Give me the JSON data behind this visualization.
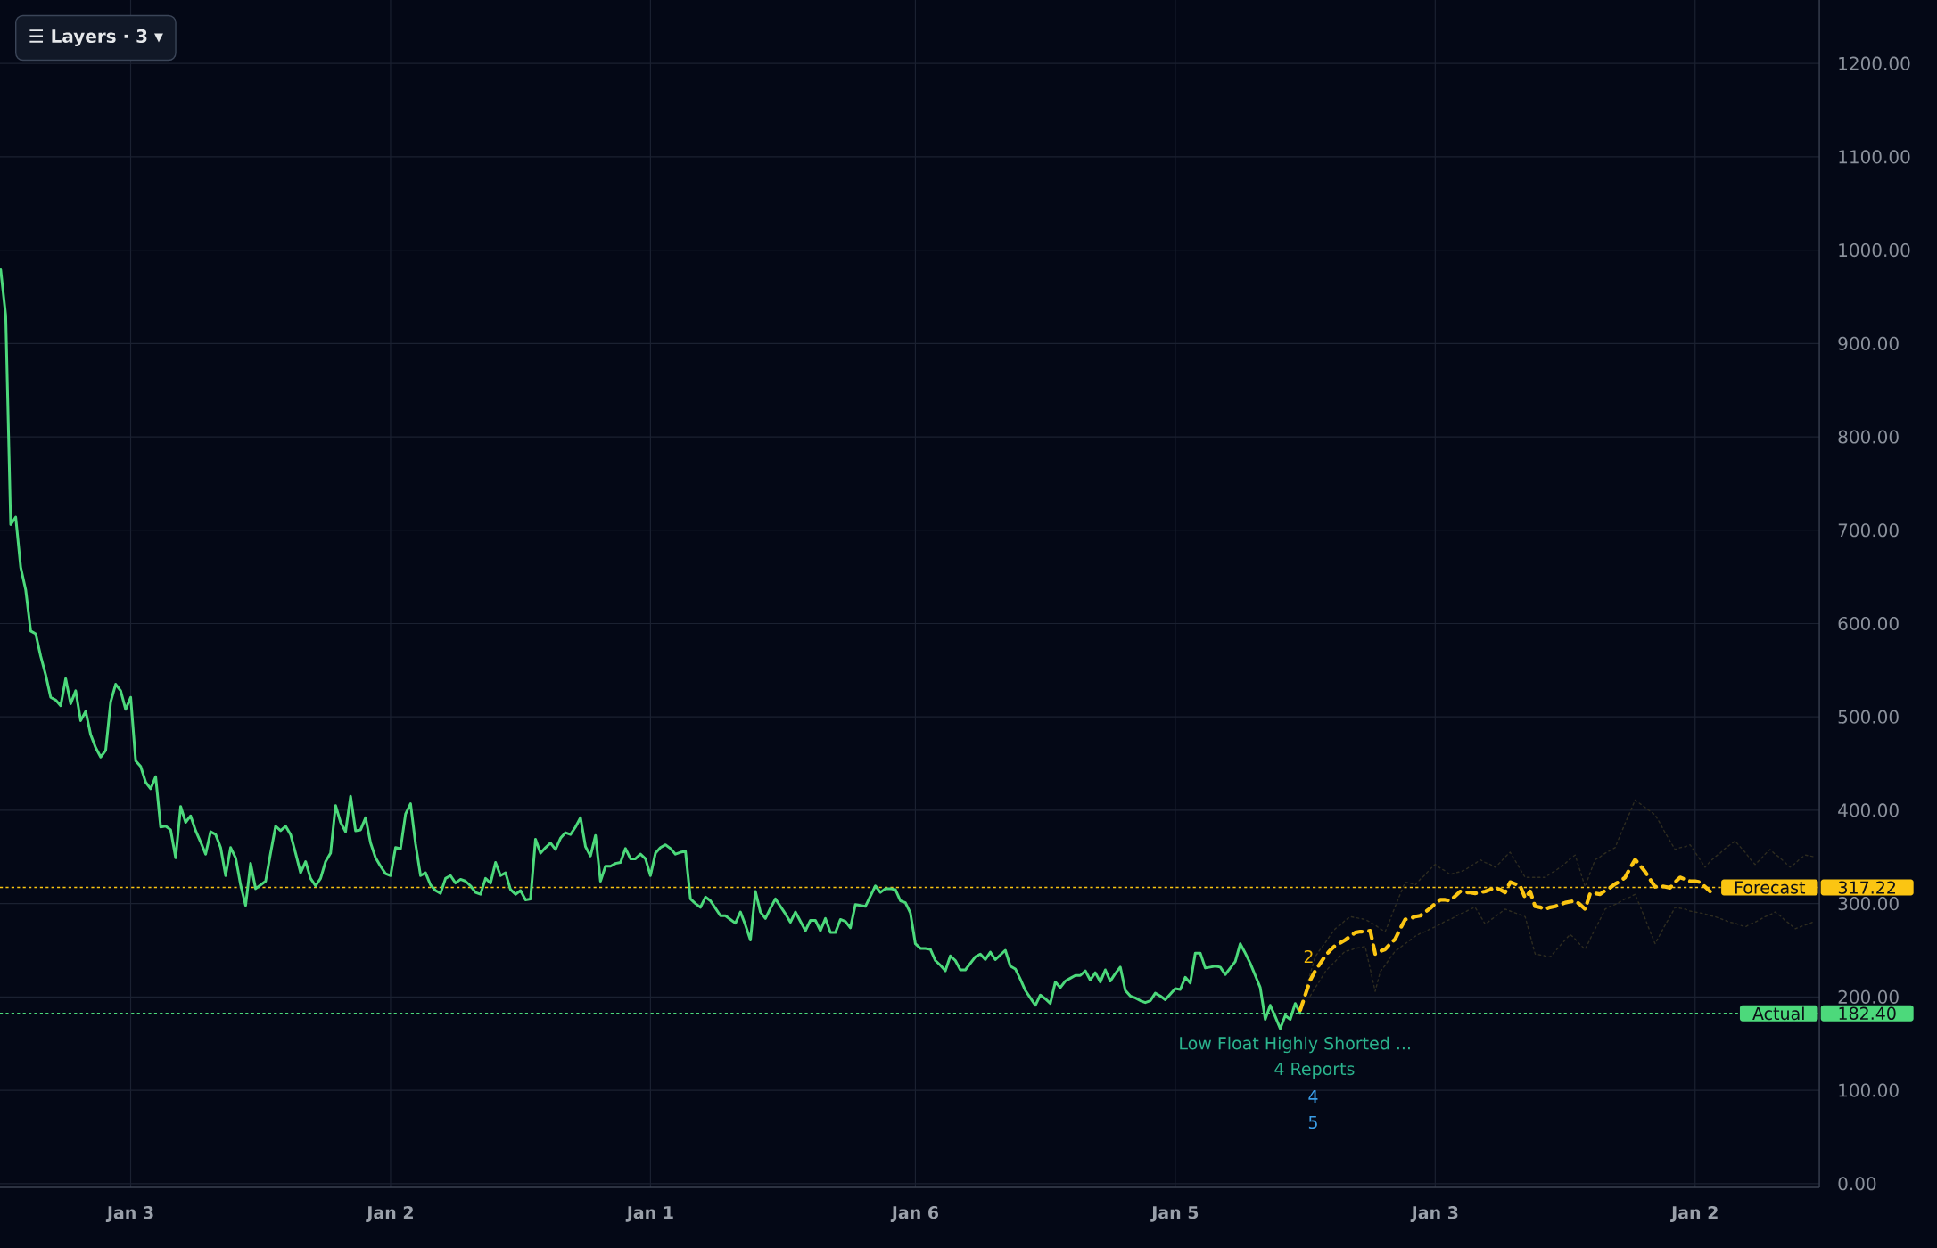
{
  "chart_data": {
    "type": "line",
    "categories": [
      null,
      null,
      null,
      null,
      null,
      null,
      null,
      null,
      null,
      null,
      null,
      null,
      null,
      null,
      null,
      null,
      null,
      null,
      null,
      null,
      null,
      null,
      null,
      null,
      null,
      null,
      "Jan 3",
      null,
      null,
      null,
      null,
      null,
      null,
      null,
      null,
      null,
      null,
      null,
      null,
      null,
      null,
      null,
      null,
      null,
      null,
      null,
      null,
      null,
      null,
      null,
      null,
      null,
      null,
      null,
      null,
      null,
      null,
      null,
      null,
      null,
      null,
      null,
      null,
      null,
      null,
      null,
      null,
      null,
      null,
      null,
      null,
      null,
      null,
      null,
      null,
      null,
      null,
      null,
      "Jan 2",
      null,
      null,
      null,
      null,
      null,
      null,
      null,
      null,
      null,
      null,
      null,
      null,
      null,
      null,
      null,
      null,
      null,
      null,
      null,
      null,
      null,
      null,
      null,
      null,
      null,
      null,
      null,
      null,
      null,
      null,
      null,
      null,
      null,
      null,
      null,
      null,
      null,
      null,
      null,
      null,
      null,
      null,
      null,
      null,
      null,
      null,
      null,
      null,
      null,
      null,
      null,
      "Jan 1",
      null,
      null,
      null,
      null,
      null,
      null,
      null,
      null,
      null,
      null,
      null,
      null,
      null,
      null,
      null,
      null,
      null,
      null,
      null,
      null,
      null,
      null,
      null,
      null,
      null,
      null,
      null,
      null,
      null,
      null,
      null,
      null,
      null,
      null,
      null,
      null,
      null,
      null,
      null,
      null,
      null,
      null,
      null,
      null,
      null,
      null,
      null,
      null,
      null,
      null,
      null,
      null,
      "Jan 6",
      null,
      null,
      null,
      null,
      null,
      null,
      null,
      null,
      null,
      null,
      null,
      null,
      null,
      null,
      null,
      null,
      null,
      null,
      null,
      null,
      null,
      null,
      null,
      null,
      null,
      null,
      null,
      null,
      null,
      null,
      null,
      null,
      null,
      null,
      null,
      null,
      null,
      null,
      null,
      null,
      null,
      null,
      null,
      null,
      null,
      null,
      null,
      null,
      null,
      null,
      null,
      "Jan 5",
      null,
      null,
      null,
      null,
      null,
      null,
      null,
      null,
      null,
      null,
      null,
      null,
      null,
      null,
      null,
      null,
      null,
      null,
      null,
      null,
      null,
      null,
      null,
      null,
      null,
      null,
      null,
      null,
      null,
      null,
      null,
      null,
      null,
      null,
      null,
      null,
      null,
      null,
      null,
      null,
      null,
      null,
      null,
      null,
      null,
      null,
      null,
      null,
      null,
      null,
      null,
      "Jan 3",
      null,
      null,
      null,
      null,
      null,
      null,
      null,
      null,
      null,
      null,
      null,
      null,
      null,
      null,
      null,
      null,
      null,
      null,
      null,
      null,
      null,
      null,
      null,
      null,
      null,
      null,
      null,
      null,
      null,
      null,
      null,
      null,
      null,
      null,
      null,
      null,
      null,
      null,
      null,
      null,
      null,
      null,
      null,
      null,
      null,
      null,
      null,
      null,
      null,
      null,
      null,
      "Jan 2",
      null,
      null,
      null,
      null,
      null,
      null,
      null,
      null,
      null,
      null,
      null,
      null,
      null,
      null,
      null,
      null,
      null,
      null,
      null,
      null,
      null,
      null,
      null,
      null
    ],
    "ylim": [
      -4,
      1268
    ],
    "yticks": [
      {
        "value": 0,
        "label": "0.00"
      },
      {
        "value": 100,
        "label": "100.00"
      },
      {
        "value": 200,
        "label": "200.00"
      },
      {
        "value": 300,
        "label": "300.00"
      },
      {
        "value": 400,
        "label": "400.00"
      },
      {
        "value": 500,
        "label": "500.00"
      },
      {
        "value": 600,
        "label": "600.00"
      },
      {
        "value": 700,
        "label": "700.00"
      },
      {
        "value": 800,
        "label": "800.00"
      },
      {
        "value": 900,
        "label": "900.00"
      },
      {
        "value": 1000,
        "label": "1000.00"
      },
      {
        "value": 1100,
        "label": "1100.00"
      },
      {
        "value": 1200,
        "label": "1200.00"
      }
    ],
    "grid": true,
    "series": [
      {
        "color": "#2e2c20",
        "line_style": "dotted",
        "values": [
          null,
          null,
          null,
          null,
          null,
          null,
          null,
          null,
          null,
          null,
          null,
          null,
          null,
          null,
          null,
          null,
          null,
          null,
          null,
          null,
          null,
          null,
          null,
          null,
          null,
          null,
          null,
          null,
          null,
          null,
          null,
          null,
          null,
          null,
          null,
          null,
          null,
          null,
          null,
          null,
          null,
          null,
          null,
          null,
          null,
          null,
          null,
          null,
          null,
          null,
          null,
          null,
          null,
          null,
          null,
          null,
          null,
          null,
          null,
          null,
          null,
          null,
          null,
          null,
          null,
          null,
          null,
          null,
          null,
          null,
          null,
          null,
          null,
          null,
          null,
          null,
          null,
          null,
          null,
          null,
          null,
          null,
          null,
          null,
          null,
          null,
          null,
          null,
          null,
          null,
          null,
          null,
          null,
          null,
          null,
          null,
          null,
          null,
          null,
          null,
          null,
          null,
          null,
          null,
          null,
          null,
          null,
          null,
          null,
          null,
          null,
          null,
          null,
          null,
          null,
          null,
          null,
          null,
          null,
          null,
          null,
          null,
          null,
          null,
          null,
          null,
          null,
          null,
          null,
          null,
          null,
          null,
          null,
          null,
          null,
          null,
          null,
          null,
          null,
          null,
          null,
          null,
          null,
          null,
          null,
          null,
          null,
          null,
          null,
          null,
          null,
          null,
          null,
          null,
          null,
          null,
          null,
          null,
          null,
          null,
          null,
          null,
          null,
          null,
          null,
          null,
          null,
          null,
          null,
          null,
          null,
          null,
          null,
          null,
          null,
          null,
          null,
          null,
          null,
          null,
          null,
          null,
          null,
          null,
          null,
          null,
          null,
          null,
          null,
          null,
          null,
          null,
          null,
          null,
          null,
          null,
          null,
          null,
          null,
          null,
          null,
          null,
          null,
          null,
          null,
          null,
          null,
          null,
          null,
          null,
          null,
          null,
          null,
          null,
          null,
          null,
          null,
          null,
          null,
          null,
          null,
          null,
          null,
          null,
          null,
          null,
          null,
          null,
          null,
          null,
          null,
          null,
          null,
          null,
          null,
          null,
          null,
          null,
          null,
          null,
          null,
          null,
          null,
          null,
          null,
          null,
          null,
          null,
          null,
          null,
          null,
          null,
          null,
          null,
          null,
          null,
          null,
          null,
          null,
          null,
          null,
          206,
          225,
          243,
          251,
          258,
          266,
          273,
          277,
          282,
          286,
          285,
          284,
          283,
          280,
          277,
          273,
          270,
          283,
          297,
          310,
          323,
          322,
          320,
          326,
          331,
          337,
          342,
          338,
          335,
          331,
          333,
          334,
          336,
          340,
          343,
          347,
          344,
          342,
          339,
          344,
          350,
          355,
          346,
          337,
          328,
          328,
          328,
          328,
          328,
          332,
          335,
          339,
          343,
          348,
          352,
          335,
          318,
          333,
          347,
          350,
          354,
          357,
          360,
          373,
          386,
          398,
          411,
          407,
          403,
          399,
          395,
          386,
          376,
          367,
          358,
          360,
          361,
          363,
          355,
          347,
          339,
          345,
          350,
          354,
          359,
          363,
          367,
          361,
          355,
          348,
          342,
          347,
          353,
          358,
          353,
          349,
          344,
          339,
          343,
          348,
          352,
          351,
          350
        ]
      },
      {
        "color": "#2e2c20",
        "line_style": "dotted",
        "values": [
          null,
          null,
          null,
          null,
          null,
          null,
          null,
          null,
          null,
          null,
          null,
          null,
          null,
          null,
          null,
          null,
          null,
          null,
          null,
          null,
          null,
          null,
          null,
          null,
          null,
          null,
          null,
          null,
          null,
          null,
          null,
          null,
          null,
          null,
          null,
          null,
          null,
          null,
          null,
          null,
          null,
          null,
          null,
          null,
          null,
          null,
          null,
          null,
          null,
          null,
          null,
          null,
          null,
          null,
          null,
          null,
          null,
          null,
          null,
          null,
          null,
          null,
          null,
          null,
          null,
          null,
          null,
          null,
          null,
          null,
          null,
          null,
          null,
          null,
          null,
          null,
          null,
          null,
          null,
          null,
          null,
          null,
          null,
          null,
          null,
          null,
          null,
          null,
          null,
          null,
          null,
          null,
          null,
          null,
          null,
          null,
          null,
          null,
          null,
          null,
          null,
          null,
          null,
          null,
          null,
          null,
          null,
          null,
          null,
          null,
          null,
          null,
          null,
          null,
          null,
          null,
          null,
          null,
          null,
          null,
          null,
          null,
          null,
          null,
          null,
          null,
          null,
          null,
          null,
          null,
          null,
          null,
          null,
          null,
          null,
          null,
          null,
          null,
          null,
          null,
          null,
          null,
          null,
          null,
          null,
          null,
          null,
          null,
          null,
          null,
          null,
          null,
          null,
          null,
          null,
          null,
          null,
          null,
          null,
          null,
          null,
          null,
          null,
          null,
          null,
          null,
          null,
          null,
          null,
          null,
          null,
          null,
          null,
          null,
          null,
          null,
          null,
          null,
          null,
          null,
          null,
          null,
          null,
          null,
          null,
          null,
          null,
          null,
          null,
          null,
          null,
          null,
          null,
          null,
          null,
          null,
          null,
          null,
          null,
          null,
          null,
          null,
          null,
          null,
          null,
          null,
          null,
          null,
          null,
          null,
          null,
          null,
          null,
          null,
          null,
          null,
          null,
          null,
          null,
          null,
          null,
          null,
          null,
          null,
          null,
          null,
          null,
          null,
          null,
          null,
          null,
          null,
          null,
          null,
          null,
          null,
          null,
          null,
          null,
          null,
          null,
          null,
          null,
          null,
          null,
          null,
          null,
          null,
          null,
          null,
          null,
          null,
          null,
          null,
          null,
          null,
          null,
          null,
          null,
          null,
          null,
          null,
          201,
          210,
          218,
          227,
          233,
          238,
          244,
          249,
          250,
          252,
          253,
          254,
          230,
          206,
          227,
          234,
          242,
          249,
          253,
          257,
          261,
          265,
          268,
          270,
          273,
          275,
          278,
          281,
          283,
          286,
          289,
          291,
          294,
          296,
          287,
          278,
          282,
          286,
          290,
          294,
          292,
          290,
          288,
          286,
          266,
          246,
          245,
          244,
          243,
          249,
          255,
          261,
          267,
          262,
          256,
          251,
          262,
          273,
          283,
          294,
          297,
          299,
          302,
          305,
          307,
          310,
          297,
          284,
          270,
          257,
          267,
          277,
          286,
          296,
          295,
          294,
          292,
          291,
          290,
          289,
          287,
          286,
          284,
          282,
          280,
          279,
          277,
          275,
          278,
          280,
          283,
          286,
          288,
          291,
          287,
          282,
          278,
          273,
          275,
          277,
          279,
          281
        ]
      },
      {
        "name": "Actual",
        "color": "#4cd97b",
        "line_style": "solid",
        "values": [
          979,
          930,
          706,
          714,
          660,
          636,
          592,
          589,
          565,
          545,
          521,
          518,
          512,
          541,
          514,
          528,
          496,
          506,
          481,
          467,
          457,
          464,
          516,
          535,
          528,
          508,
          521,
          453,
          447,
          430,
          423,
          436,
          382,
          383,
          379,
          349,
          404,
          387,
          394,
          378,
          366,
          353,
          377,
          374,
          360,
          330,
          360,
          349,
          320,
          298,
          343,
          316,
          320,
          324,
          354,
          383,
          378,
          383,
          374,
          354,
          333,
          345,
          327,
          319,
          327,
          345,
          354,
          405,
          387,
          377,
          415,
          378,
          379,
          392,
          365,
          349,
          340,
          332,
          330,
          360,
          359,
          396,
          407,
          364,
          330,
          333,
          320,
          314,
          311,
          327,
          330,
          322,
          326,
          324,
          319,
          312,
          310,
          327,
          322,
          344,
          330,
          333,
          315,
          310,
          314,
          304,
          305,
          369,
          354,
          360,
          365,
          358,
          370,
          376,
          374,
          382,
          392,
          361,
          351,
          373,
          324,
          340,
          340,
          343,
          344,
          359,
          348,
          348,
          353,
          348,
          330,
          354,
          360,
          363,
          359,
          353,
          355,
          356,
          305,
          300,
          296,
          307,
          303,
          295,
          287,
          287,
          283,
          279,
          291,
          277,
          261,
          313,
          291,
          284,
          295,
          305,
          297,
          289,
          280,
          291,
          281,
          271,
          282,
          282,
          271,
          284,
          269,
          269,
          283,
          281,
          274,
          299,
          298,
          297,
          308,
          319,
          312,
          316,
          316,
          315,
          303,
          301,
          290,
          257,
          252,
          252,
          251,
          239,
          234,
          228,
          244,
          239,
          229,
          229,
          236,
          243,
          246,
          240,
          248,
          240,
          245,
          250,
          233,
          230,
          219,
          207,
          199,
          191,
          202,
          198,
          193,
          216,
          210,
          217,
          220,
          223,
          223,
          228,
          218,
          226,
          216,
          229,
          217,
          225,
          232,
          207,
          201,
          199,
          196,
          194,
          196,
          204,
          201,
          197,
          203,
          209,
          208,
          221,
          215,
          247,
          247,
          231,
          232,
          233,
          232,
          224,
          231,
          238,
          257,
          247,
          236,
          223,
          210,
          176,
          191,
          179,
          166,
          180,
          176,
          193,
          182.4,
          null,
          null,
          null,
          null,
          null,
          null,
          null,
          null,
          null,
          null,
          null,
          null,
          null,
          null,
          null,
          null,
          null,
          null,
          null,
          null,
          null,
          null,
          null,
          null,
          null,
          null,
          null,
          null,
          null,
          null,
          null,
          null,
          null,
          null,
          null,
          null,
          null,
          null,
          null,
          null,
          null,
          null,
          null,
          null,
          null,
          null,
          null,
          null,
          null,
          null,
          null,
          null,
          null,
          null,
          null,
          null,
          null,
          null,
          null,
          null,
          null,
          null,
          null,
          null,
          null,
          null,
          null,
          null,
          null,
          null,
          null,
          null,
          null,
          null,
          null,
          null,
          null,
          null,
          null,
          null,
          null,
          null,
          null,
          null,
          null,
          null,
          null,
          null,
          null,
          null,
          null,
          null,
          null,
          null,
          null,
          null,
          null,
          null,
          null,
          null,
          null,
          null,
          null
        ]
      },
      {
        "name": "Forecast",
        "color": "#fbc512",
        "line_style": "dashed",
        "values": [
          null,
          null,
          null,
          null,
          null,
          null,
          null,
          null,
          null,
          null,
          null,
          null,
          null,
          null,
          null,
          null,
          null,
          null,
          null,
          null,
          null,
          null,
          null,
          null,
          null,
          null,
          null,
          null,
          null,
          null,
          null,
          null,
          null,
          null,
          null,
          null,
          null,
          null,
          null,
          null,
          null,
          null,
          null,
          null,
          null,
          null,
          null,
          null,
          null,
          null,
          null,
          null,
          null,
          null,
          null,
          null,
          null,
          null,
          null,
          null,
          null,
          null,
          null,
          null,
          null,
          null,
          null,
          null,
          null,
          null,
          null,
          null,
          null,
          null,
          null,
          null,
          null,
          null,
          null,
          null,
          null,
          null,
          null,
          null,
          null,
          null,
          null,
          null,
          null,
          null,
          null,
          null,
          null,
          null,
          null,
          null,
          null,
          null,
          null,
          null,
          null,
          null,
          null,
          null,
          null,
          null,
          null,
          null,
          null,
          null,
          null,
          null,
          null,
          null,
          null,
          null,
          null,
          null,
          null,
          null,
          null,
          null,
          null,
          null,
          null,
          null,
          null,
          null,
          null,
          null,
          null,
          null,
          null,
          null,
          null,
          null,
          null,
          null,
          null,
          null,
          null,
          null,
          null,
          null,
          null,
          null,
          null,
          null,
          null,
          null,
          null,
          null,
          null,
          null,
          null,
          null,
          null,
          null,
          null,
          null,
          null,
          null,
          null,
          null,
          null,
          null,
          null,
          null,
          null,
          null,
          null,
          null,
          null,
          null,
          null,
          null,
          null,
          null,
          null,
          null,
          null,
          null,
          null,
          null,
          null,
          null,
          null,
          null,
          null,
          null,
          null,
          null,
          null,
          null,
          null,
          null,
          null,
          null,
          null,
          null,
          null,
          null,
          null,
          null,
          null,
          null,
          null,
          null,
          null,
          null,
          null,
          null,
          null,
          null,
          null,
          null,
          null,
          null,
          null,
          null,
          null,
          null,
          null,
          null,
          null,
          null,
          null,
          null,
          null,
          null,
          null,
          null,
          null,
          null,
          null,
          null,
          null,
          null,
          null,
          null,
          null,
          null,
          null,
          null,
          null,
          null,
          null,
          null,
          null,
          null,
          null,
          null,
          null,
          null,
          null,
          null,
          null,
          null,
          null,
          null,
          186,
          202,
          218,
          228,
          236,
          244,
          250,
          255,
          258,
          261,
          265,
          269,
          270,
          270,
          271,
          246,
          249,
          251,
          257,
          262,
          273,
          283,
          284,
          286,
          287,
          291,
          295,
          300,
          304,
          304,
          303,
          308,
          313,
          312,
          312,
          311,
          312,
          313,
          315,
          317,
          315,
          312,
          323,
          321,
          319,
          306,
          313,
          297,
          296,
          294,
          296,
          297,
          299,
          301,
          302,
          303,
          299,
          294,
          311,
          311,
          310,
          314,
          317,
          321,
          324,
          328,
          338,
          347,
          341,
          334,
          326,
          318,
          319,
          318,
          317,
          323,
          328,
          326,
          324,
          324,
          323,
          318,
          313,
          null,
          null,
          null,
          null,
          null,
          null,
          null,
          null,
          null,
          null,
          null,
          null,
          null,
          null,
          null,
          null,
          null,
          null,
          null,
          null,
          null
        ]
      }
    ],
    "ref_lines": [
      {
        "axis": "y",
        "value": 317.22,
        "label": "317.22",
        "color": "#fbc512",
        "line_style": "dotted"
      },
      {
        "axis": "y",
        "value": 182.4,
        "label": "182.40",
        "color": "#4cd97b",
        "line_style": "dotted"
      }
    ],
    "annotations": [
      "☰ Layers · 3 ▾",
      "2",
      "Low Float Highly Shorted ...",
      "4 Reports",
      "4",
      "5"
    ]
  }
}
